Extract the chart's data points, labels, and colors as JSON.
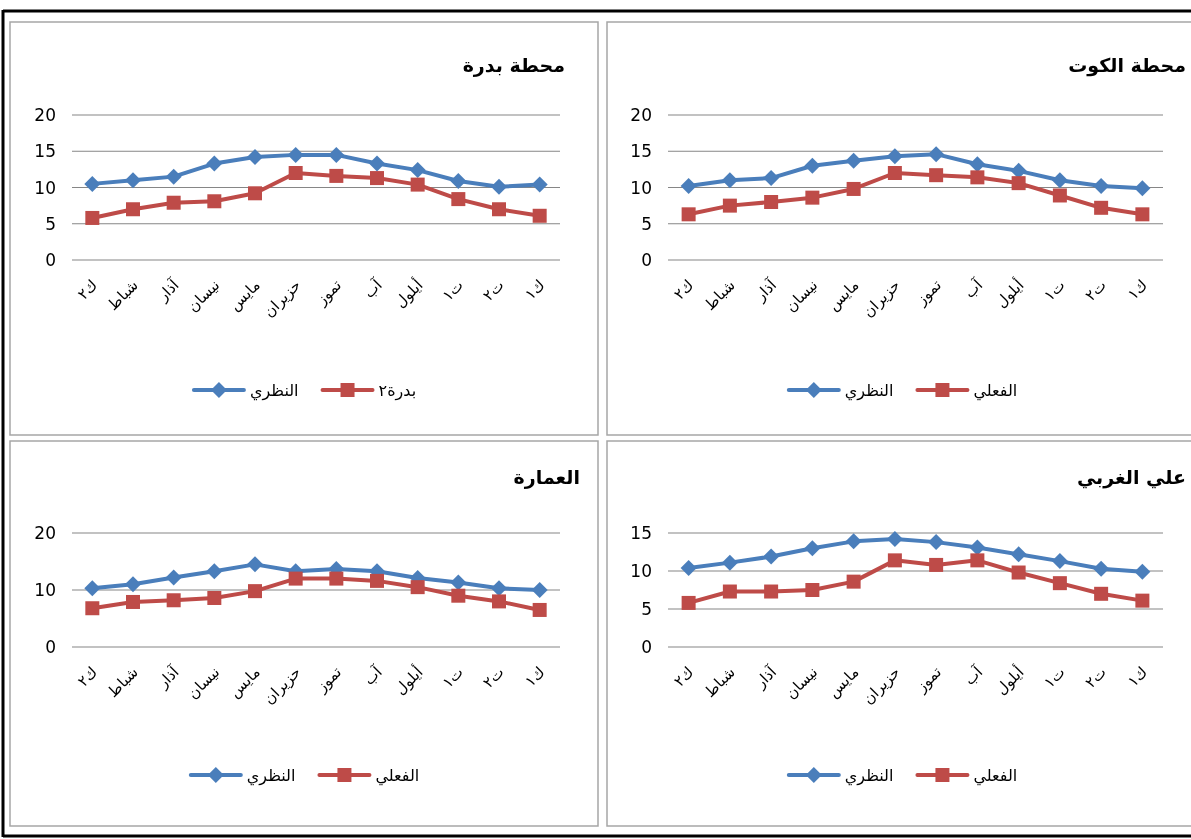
{
  "chart_data": [
    {
      "type": "line",
      "title": "محطة بدرة",
      "categories": [
        "ك٢",
        "شباط",
        "آذار",
        "نيسان",
        "مايس",
        "حزيران",
        "تموز",
        "آب",
        "أيلول",
        "ت١",
        "ت٢",
        "ك١"
      ],
      "series": [
        {
          "name": "النظري",
          "color": "#4a7ebb",
          "marker": "diamond",
          "values": [
            10.5,
            11,
            11.5,
            13.3,
            14.2,
            14.5,
            14.5,
            13.3,
            12.4,
            10.9,
            10.1,
            10.4
          ]
        },
        {
          "name": "بدرة٢",
          "color": "#be4b48",
          "marker": "square",
          "values": [
            5.8,
            7,
            7.9,
            8.1,
            9.2,
            12,
            11.6,
            11.3,
            10.4,
            8.4,
            7,
            6.1
          ]
        }
      ],
      "ylim": [
        0,
        20
      ],
      "yticks": [
        0,
        5,
        10,
        15,
        20
      ],
      "grid": "y",
      "legend": "bottom"
    },
    {
      "type": "line",
      "title": "محطة الكوت",
      "categories": [
        "ك٢",
        "شباط",
        "آذار",
        "نيسان",
        "مايس",
        "حزيران",
        "تموز",
        "آب",
        "أيلول",
        "ت١",
        "ت٢",
        "ك١"
      ],
      "series": [
        {
          "name": "النظري",
          "color": "#4a7ebb",
          "marker": "diamond",
          "values": [
            10.2,
            11,
            11.3,
            13,
            13.7,
            14.3,
            14.6,
            13.2,
            12.3,
            11,
            10.2,
            9.9
          ]
        },
        {
          "name": "الفعلي",
          "color": "#be4b48",
          "marker": "square",
          "values": [
            6.3,
            7.5,
            8,
            8.6,
            9.8,
            12,
            11.7,
            11.4,
            10.6,
            8.9,
            7.2,
            6.3
          ]
        }
      ],
      "ylim": [
        0,
        20
      ],
      "yticks": [
        0,
        5,
        10,
        15,
        20
      ],
      "grid": "y",
      "legend": "bottom"
    },
    {
      "type": "line",
      "title": "العمارة",
      "categories": [
        "ك٢",
        "شباط",
        "آذار",
        "نيسان",
        "مايس",
        "حزيران",
        "تموز",
        "آب",
        "أيلول",
        "ت١",
        "ت٢",
        "ك١"
      ],
      "series": [
        {
          "name": "النظري",
          "color": "#4a7ebb",
          "marker": "diamond",
          "values": [
            10.3,
            11,
            12.2,
            13.3,
            14.5,
            13.3,
            13.7,
            13.3,
            12.1,
            11.3,
            10.3,
            10
          ]
        },
        {
          "name": "الفعلي",
          "color": "#be4b48",
          "marker": "square",
          "values": [
            6.8,
            7.9,
            8.2,
            8.6,
            9.8,
            12,
            12,
            11.6,
            10.5,
            9,
            8,
            6.5
          ]
        }
      ],
      "ylim": [
        0,
        20
      ],
      "yticks": [
        0,
        10,
        20
      ],
      "grid": "y",
      "legend": "bottom"
    },
    {
      "type": "line",
      "title": "علي الغربي",
      "categories": [
        "ك٢",
        "شباط",
        "آذار",
        "نيسان",
        "مايس",
        "حزيران",
        "تموز",
        "آب",
        "أيلول",
        "ت١",
        "ت٢",
        "ك١"
      ],
      "series": [
        {
          "name": "النظري",
          "color": "#4a7ebb",
          "marker": "diamond",
          "values": [
            10.4,
            11.1,
            11.9,
            13,
            13.9,
            14.2,
            13.8,
            13.1,
            12.2,
            11.3,
            10.3,
            9.9
          ]
        },
        {
          "name": "الفعلي",
          "color": "#be4b48",
          "marker": "square",
          "values": [
            5.8,
            7.3,
            7.3,
            7.5,
            8.6,
            11.4,
            10.8,
            11.4,
            9.8,
            8.4,
            7,
            6.1
          ]
        }
      ],
      "ylim": [
        0,
        15
      ],
      "yticks": [
        0,
        5,
        10,
        15
      ],
      "grid": "y",
      "legend": "bottom"
    }
  ]
}
